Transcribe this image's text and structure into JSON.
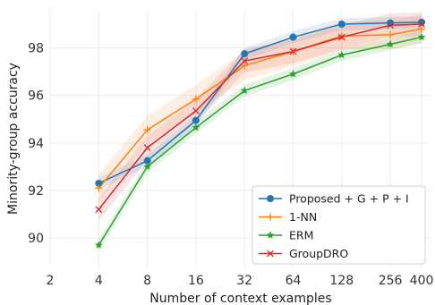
{
  "chart_data": {
    "type": "line",
    "xlabel": "Number of context examples",
    "ylabel": "Minority-group accuracy",
    "x_scale": "log2",
    "xlim": [
      2,
      460
    ],
    "ylim": [
      88.8,
      99.6
    ],
    "x_ticks": [
      2,
      4,
      8,
      16,
      32,
      64,
      128,
      256,
      400
    ],
    "x_tick_labels": [
      "2",
      "4",
      "8",
      "16",
      "32",
      "64",
      "128",
      "256",
      "400"
    ],
    "y_ticks": [
      90,
      92,
      94,
      96,
      98
    ],
    "y_tick_labels": [
      "90",
      "92",
      "94",
      "96",
      "98"
    ],
    "grid": true,
    "legend_position": "lower-right",
    "x": [
      4,
      8,
      16,
      32,
      64,
      128,
      256,
      400
    ],
    "series": [
      {
        "name": "Proposed + G + P + I",
        "color": "#1f77b4",
        "marker": "circle",
        "values": [
          92.3,
          93.25,
          94.95,
          97.75,
          98.45,
          99.0,
          99.05,
          99.08
        ],
        "band": 0.25
      },
      {
        "name": "1-NN",
        "color": "#ff7f0e",
        "marker": "plus",
        "values": [
          92.1,
          94.55,
          95.85,
          97.25,
          97.85,
          98.5,
          98.55,
          98.8
        ],
        "band": 0.6
      },
      {
        "name": "ERM",
        "color": "#2ca02c",
        "marker": "star",
        "values": [
          89.7,
          93.0,
          94.65,
          96.2,
          96.9,
          97.7,
          98.15,
          98.45
        ],
        "band": 0.25
      },
      {
        "name": "GroupDRO",
        "color": "#d62728",
        "marker": "x",
        "values": [
          91.2,
          93.8,
          95.35,
          97.45,
          97.85,
          98.45,
          98.95,
          99.0
        ],
        "band": 0.5
      }
    ]
  }
}
